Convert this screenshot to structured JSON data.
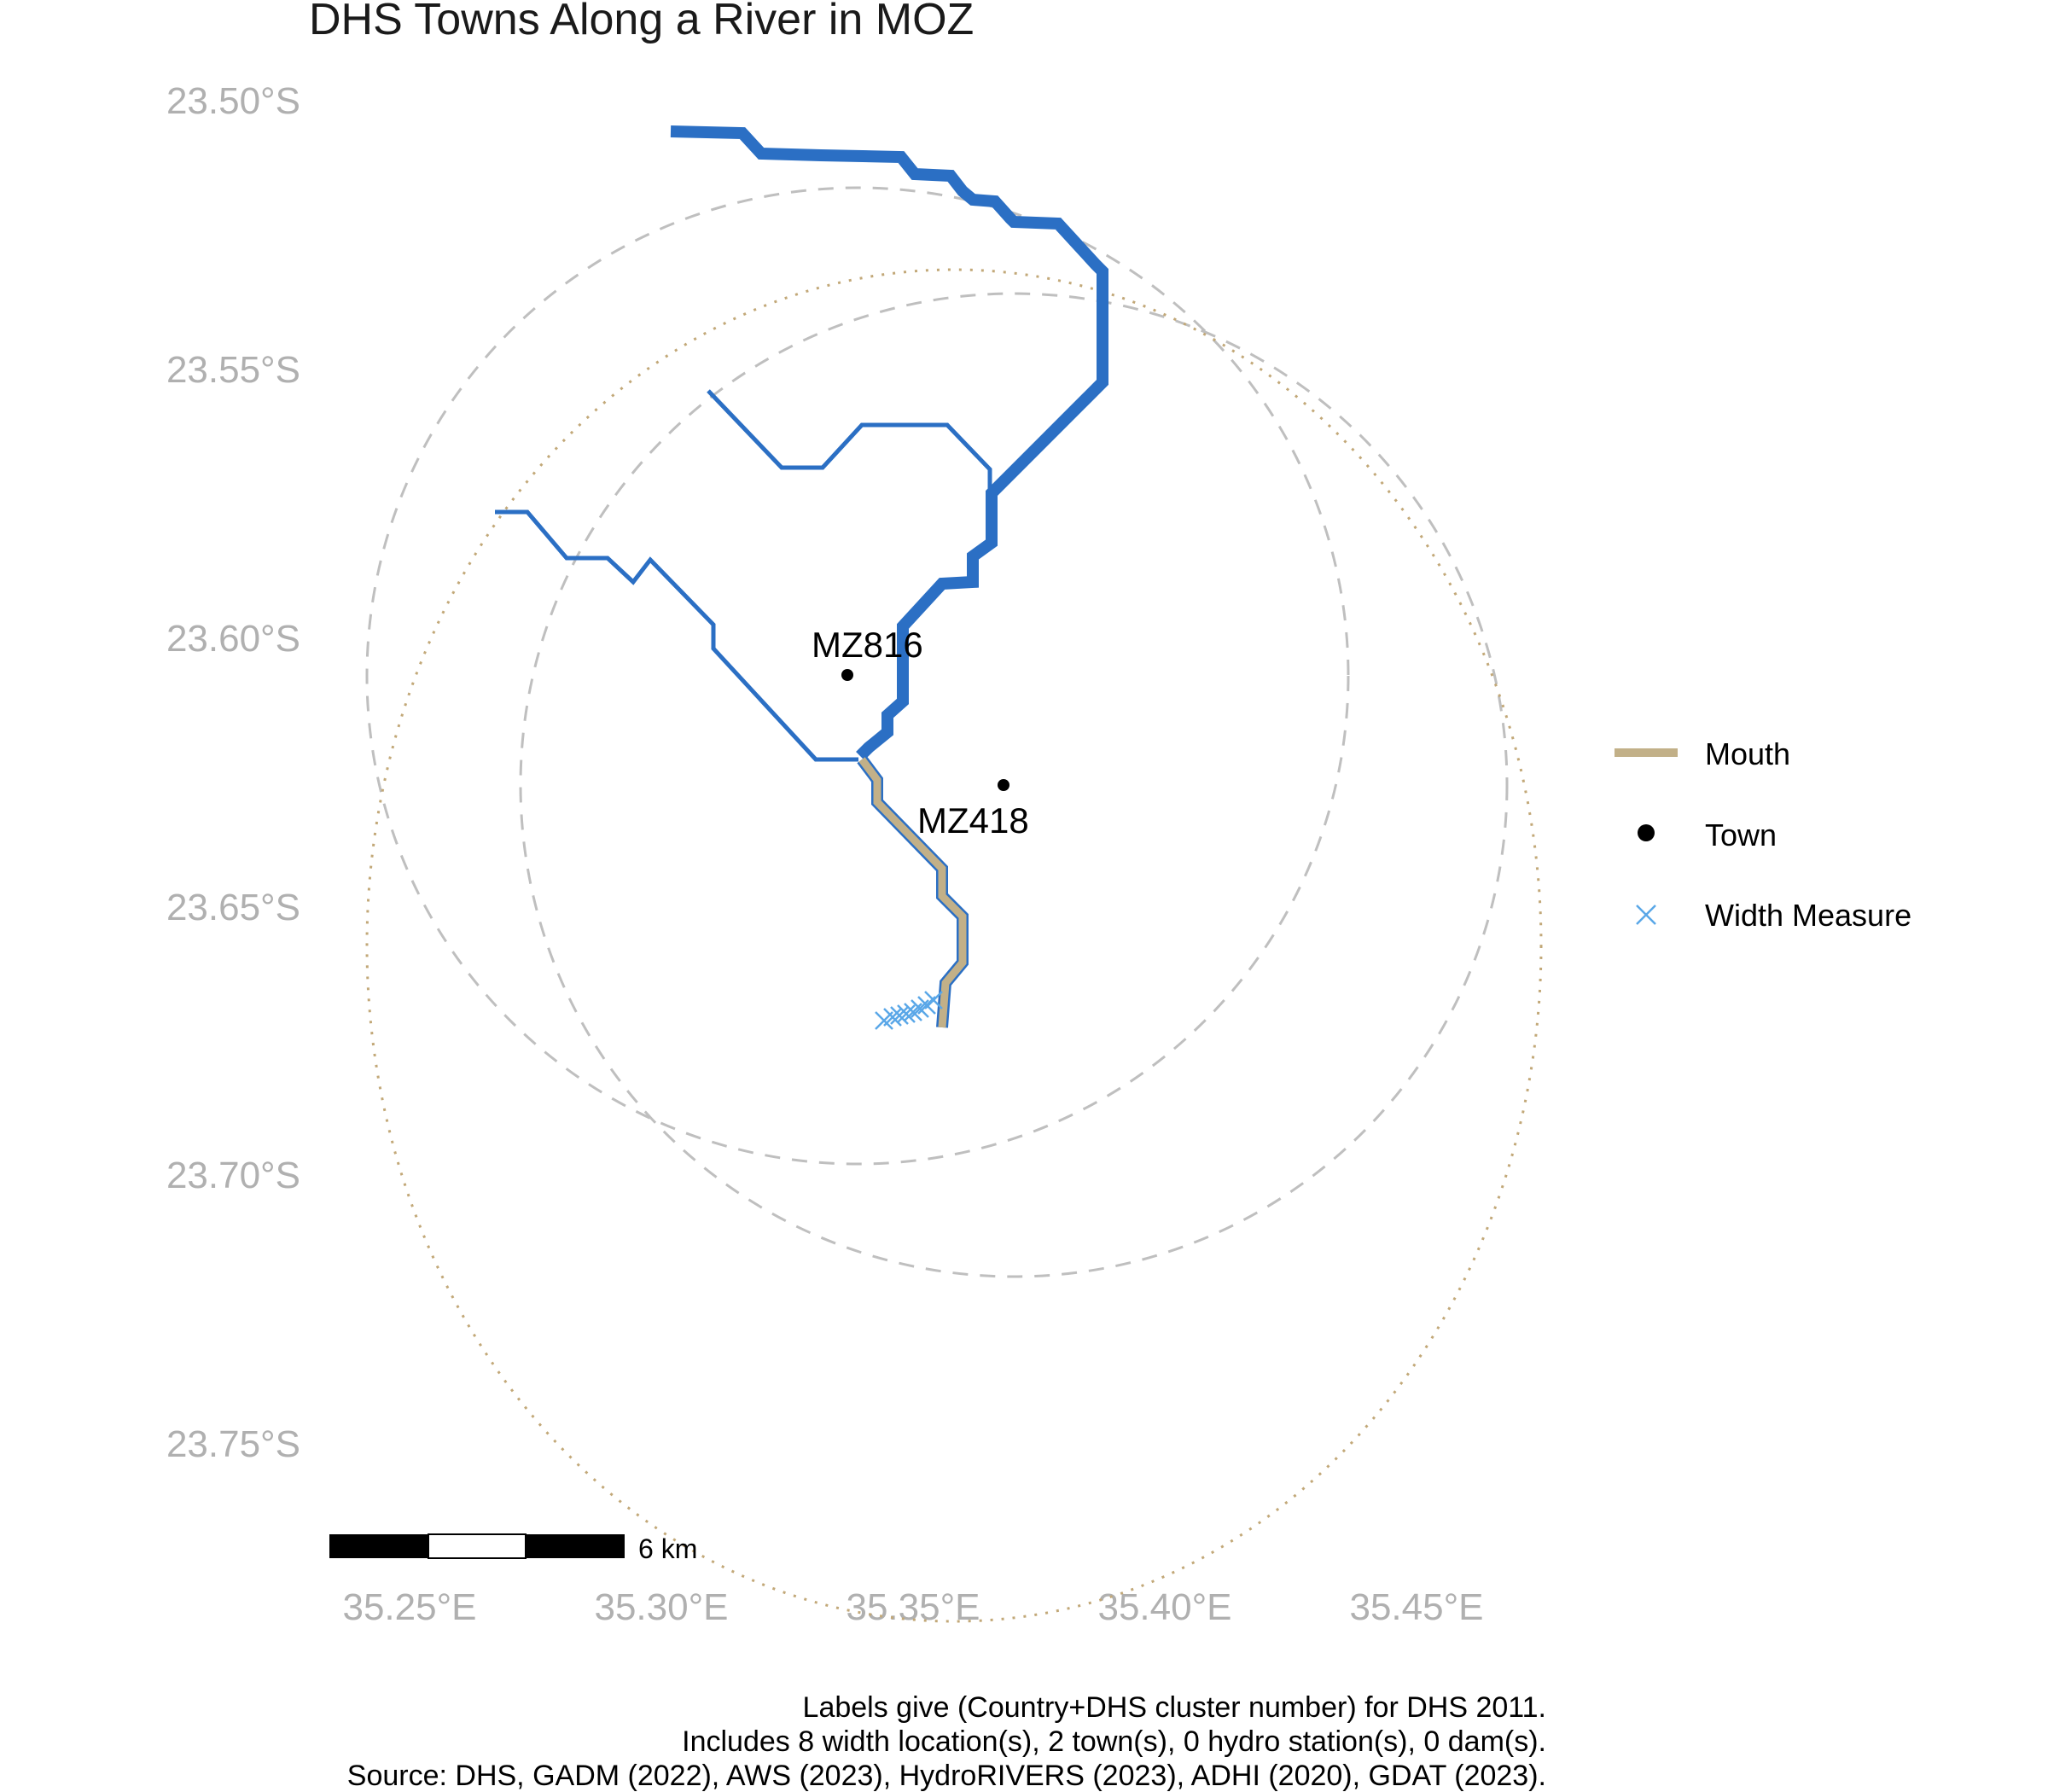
{
  "title": "DHS Towns Along a River in MOZ",
  "y_axis_ticks": [
    "23.50°S",
    "23.55°S",
    "23.60°S",
    "23.65°S",
    "23.70°S",
    "23.75°S"
  ],
  "x_axis_ticks": [
    "35.25°E",
    "35.30°E",
    "35.35°E",
    "35.40°E",
    "35.45°E"
  ],
  "towns": [
    {
      "label": "MZ816",
      "lon": 35.341,
      "lat": -23.607
    },
    {
      "label": "MZ418",
      "lon": 35.372,
      "lat": -23.628
    }
  ],
  "legend": {
    "mouth": "Mouth",
    "town": "Town",
    "width_measure": "Width Measure"
  },
  "scale_bar": {
    "label": "6 km"
  },
  "caption": {
    "line1": "Labels give (Country+DHS cluster number) for DHS 2011.",
    "line2": "Includes 8 width location(s), 2 town(s), 0 hydro station(s), 0 dam(s).",
    "line3": "Source: DHS, GADM (2022), AWS (2023), HydroRIVERS (2023), ADHI (2020), GDAT (2023)."
  },
  "colors": {
    "river": "#2b6fc4",
    "mouth": "#c2b088",
    "width_measure": "#5aa7e8",
    "buffer_dashed": "#bfbfbf",
    "buffer_dotted": "#c2a878",
    "axis_text": "#b0b0b0"
  }
}
